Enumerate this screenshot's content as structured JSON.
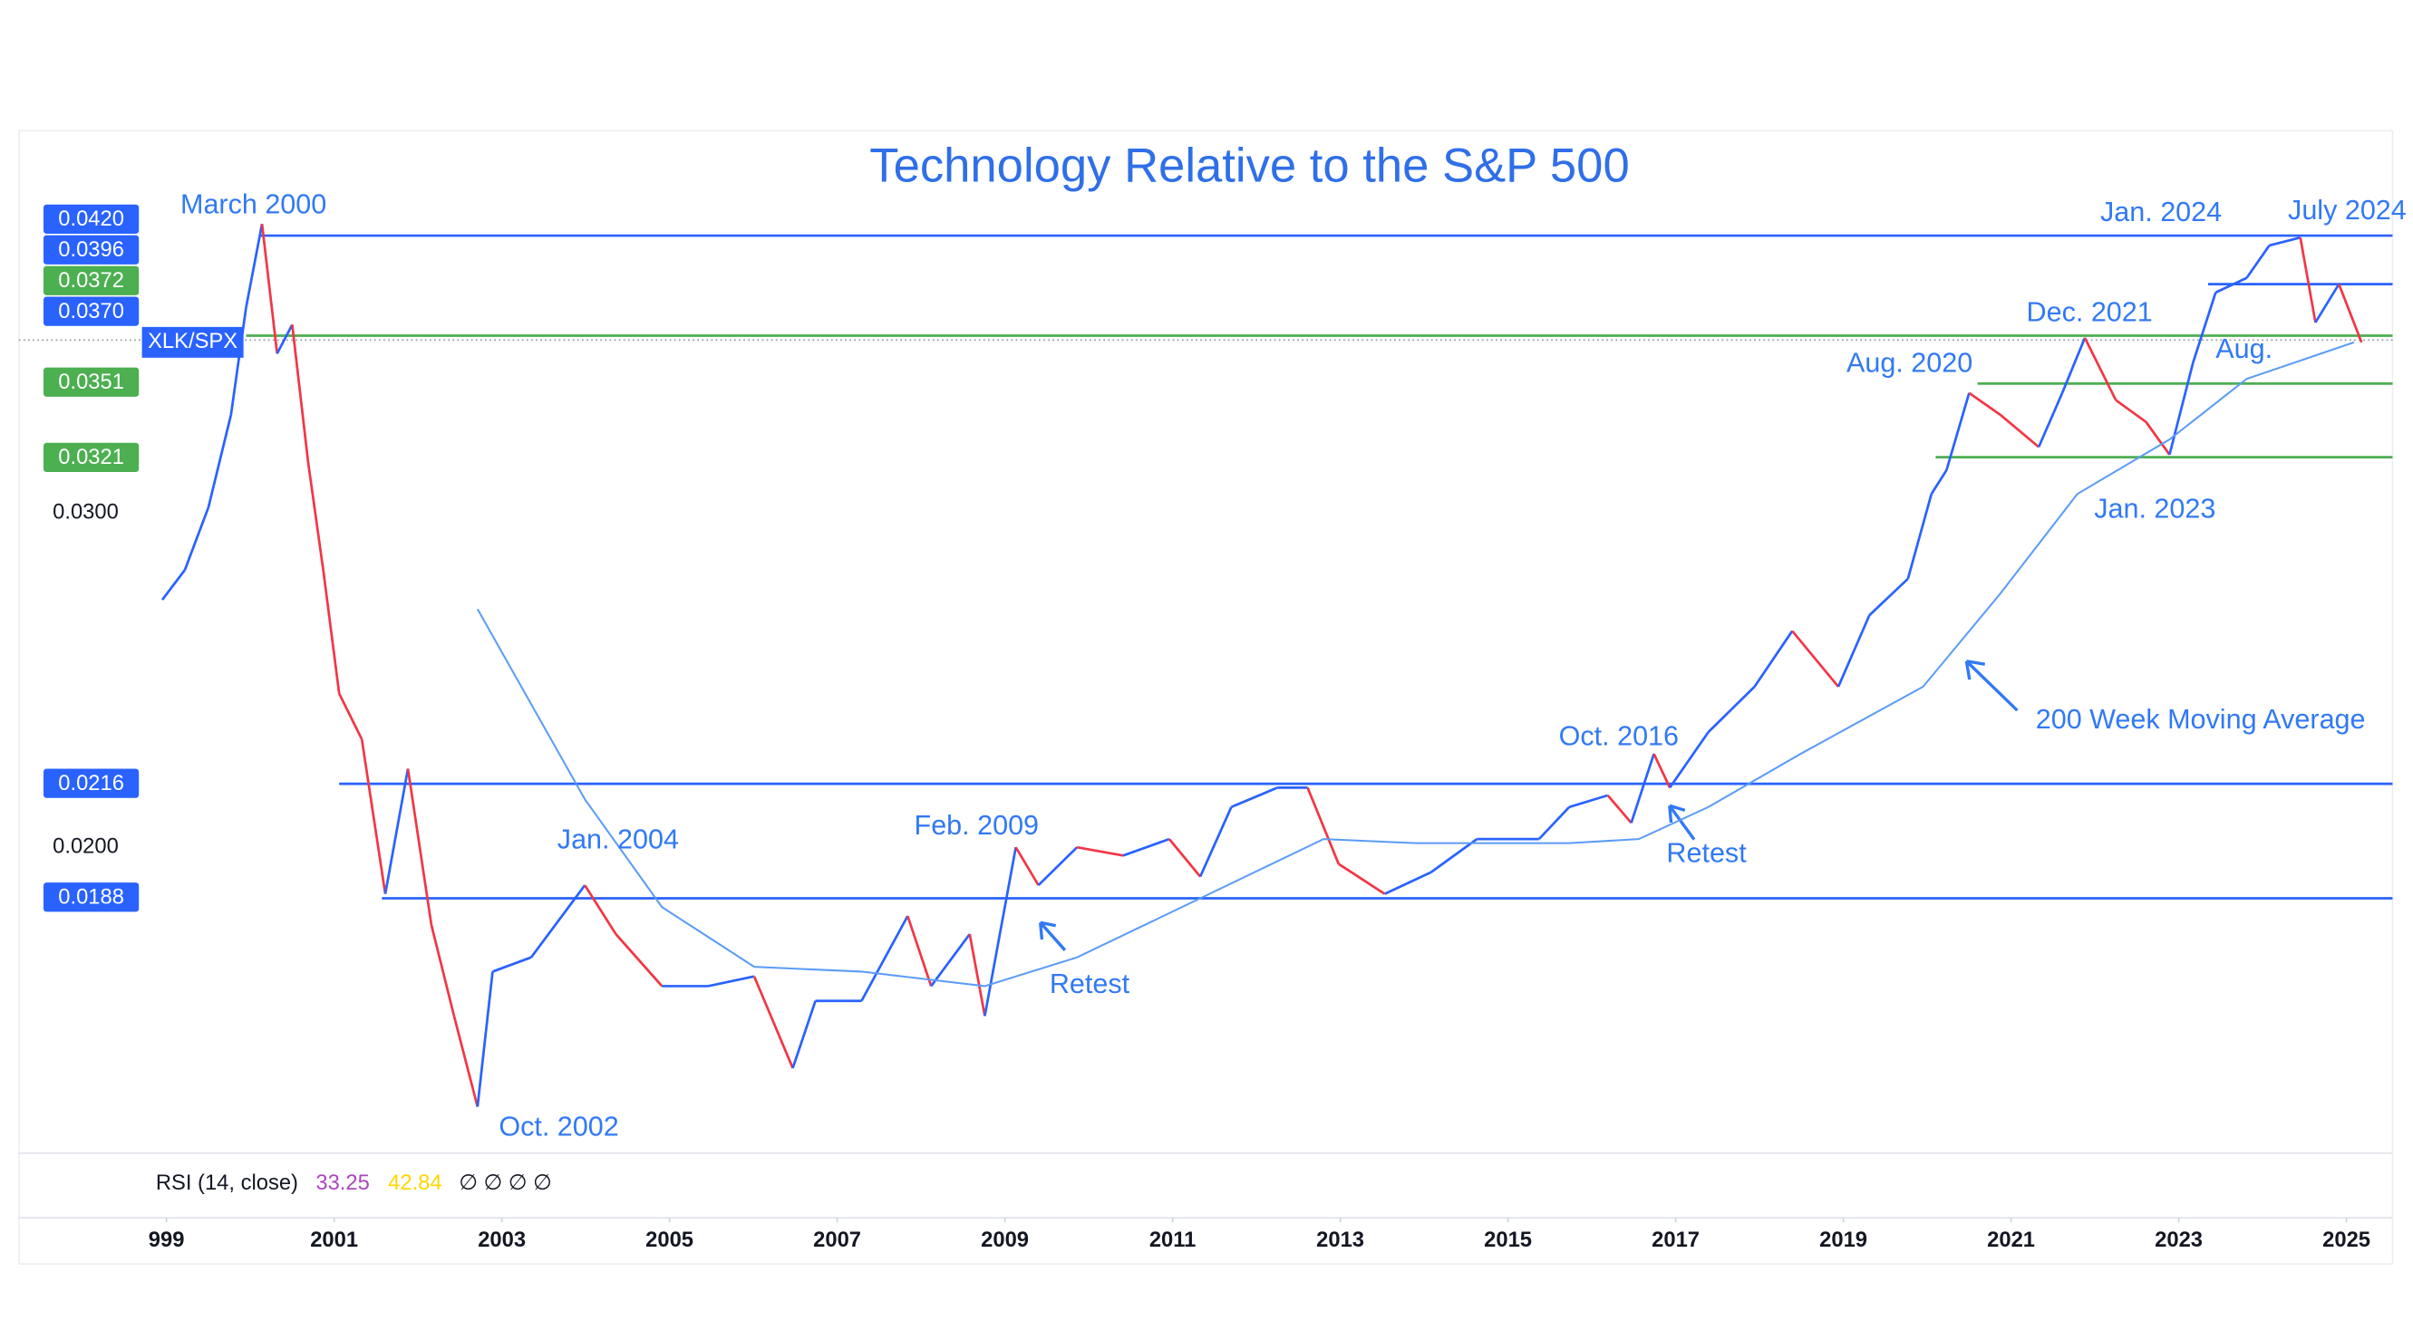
{
  "chart_data": {
    "type": "line",
    "title": "Technology Relative to the S&P 500",
    "log_scale": true,
    "grid": false,
    "xlim": [
      1997.24,
      2025.55
    ],
    "ylim": [
      0.0138,
      0.0477
    ],
    "xticks": [
      {
        "value": 1999,
        "label": "999"
      },
      2001,
      2003,
      2005,
      2007,
      2009,
      2011,
      2013,
      2015,
      2017,
      2019,
      2021,
      2023,
      2025
    ],
    "yticks": [
      {
        "value": 0.03,
        "label": "0.0300"
      },
      {
        "value": 0.02,
        "label": "0.0200"
      }
    ],
    "x": [
      1998.95,
      1999.22,
      1999.5,
      1999.77,
      1999.95,
      2000.14,
      2000.32,
      2000.5,
      2000.69,
      2000.87,
      2001.06,
      2001.33,
      2001.61,
      2001.88,
      2002.16,
      2002.43,
      2002.71,
      2002.89,
      2003.35,
      2003.99,
      2004.36,
      2004.91,
      2005.46,
      2006.01,
      2006.47,
      2006.74,
      2007.29,
      2007.84,
      2008.12,
      2008.58,
      2008.76,
      2009.13,
      2009.4,
      2009.86,
      2010.41,
      2010.96,
      2011.33,
      2011.7,
      2012.25,
      2012.61,
      2012.98,
      2013.53,
      2014.08,
      2014.63,
      2015.37,
      2015.73,
      2016.19,
      2016.47,
      2016.74,
      2016.93,
      2017.39,
      2017.94,
      2018.39,
      2018.94,
      2019.31,
      2019.77,
      2020.05,
      2020.23,
      2020.5,
      2020.87,
      2021.33,
      2021.61,
      2021.88,
      2022.25,
      2022.61,
      2022.89,
      2023.17,
      2023.44,
      2023.81,
      2024.08,
      2024.45,
      2024.63,
      2024.91,
      2025.18
    ],
    "series": [
      {
        "name": "XLK/SPX",
        "color": "#2962ff",
        "down_color": "#f23645",
        "values": [
          0.027,
          0.028,
          0.0302,
          0.0338,
          0.0385,
          0.0426,
          0.0364,
          0.0377,
          0.0319,
          0.028,
          0.0241,
          0.0228,
          0.0189,
          0.022,
          0.0182,
          0.0163,
          0.0146,
          0.0172,
          0.0175,
          0.0191,
          0.018,
          0.0169,
          0.0169,
          0.0171,
          0.0153,
          0.0166,
          0.0166,
          0.0184,
          0.0169,
          0.018,
          0.0163,
          0.02,
          0.0191,
          0.02,
          0.0198,
          0.0202,
          0.0193,
          0.021,
          0.0215,
          0.0215,
          0.0196,
          0.0189,
          0.0194,
          0.0202,
          0.0202,
          0.021,
          0.0213,
          0.0206,
          0.0224,
          0.0215,
          0.023,
          0.0243,
          0.026,
          0.0243,
          0.0265,
          0.0277,
          0.0307,
          0.0316,
          0.0347,
          0.0338,
          0.0325,
          0.0347,
          0.0371,
          0.0344,
          0.0335,
          0.0322,
          0.036,
          0.0392,
          0.0399,
          0.0415,
          0.0419,
          0.0378,
          0.0396,
          0.0369
        ]
      },
      {
        "color": "#5b9cf6",
        "x": [
          2002.71,
          2003.99,
          2004.91,
          2006.01,
          2007.29,
          2008.76,
          2009.86,
          2011.33,
          2012.8,
          2013.9,
          2015.73,
          2016.56,
          2017.39,
          2018.49,
          2019.95,
          2020.87,
          2021.79,
          2022.89,
          2023.81,
          2025.09
        ],
        "values": [
          0.0267,
          0.0212,
          0.0186,
          0.0173,
          0.0172,
          0.0169,
          0.0175,
          0.0188,
          0.0202,
          0.0201,
          0.0201,
          0.0202,
          0.021,
          0.0224,
          0.0243,
          0.0272,
          0.0307,
          0.0328,
          0.0353,
          0.0369
        ]
      }
    ],
    "levels": [
      {
        "value": 0.042,
        "label": "0.0420",
        "color": "#2962ff",
        "start": 2000.11
      },
      {
        "value": 0.0396,
        "label": "0.0396",
        "color": "#2962ff",
        "start": 2023.35
      },
      {
        "value": 0.0372,
        "label": "0.0372",
        "color": "#4caf50",
        "start": 1999.95
      },
      {
        "value": 0.037,
        "label": "0.0370",
        "color": "#2962ff",
        "start": 1997.24,
        "style": "dotted"
      },
      {
        "value": 0.0351,
        "label": "0.0351",
        "color": "#4caf50",
        "start": 2020.6
      },
      {
        "value": 0.0321,
        "label": "0.0321",
        "color": "#4caf50",
        "start": 2020.1
      },
      {
        "value": 0.0216,
        "label": "0.0216",
        "color": "#2962ff",
        "start": 2001.06
      },
      {
        "value": 0.0188,
        "label": "0.0188",
        "color": "#2962ff",
        "start": 2001.57
      }
    ],
    "annotations": [
      "March 2000",
      "Oct. 2002",
      "Jan. 2004",
      "Feb. 2009",
      "Retest",
      "Oct. 2016",
      "Retest",
      "200 Week Moving Average",
      "Aug. 2020",
      "Dec. 2021",
      "Jan. 2023",
      "Jan. 2024",
      "July 2024",
      "Aug."
    ],
    "rsi": {
      "label": "RSI (14, close)",
      "values": [
        33.25,
        42.84
      ],
      "colors": [
        "#ab47bc",
        "#ffd600"
      ],
      "empty": "∅ ∅ ∅ ∅"
    }
  }
}
